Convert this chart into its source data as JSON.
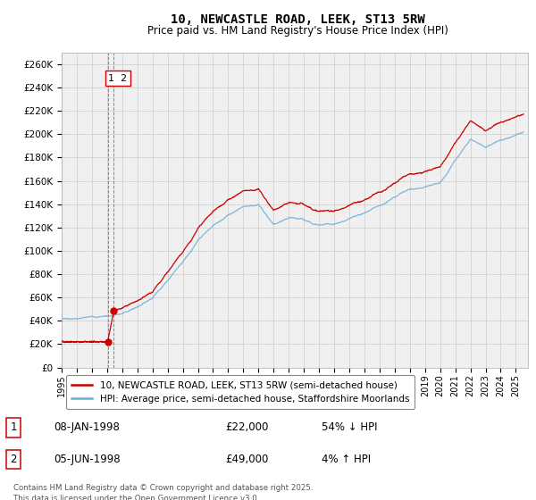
{
  "title": "10, NEWCASTLE ROAD, LEEK, ST13 5RW",
  "subtitle": "Price paid vs. HM Land Registry's House Price Index (HPI)",
  "ylim": [
    0,
    270000
  ],
  "yticks": [
    0,
    20000,
    40000,
    60000,
    80000,
    100000,
    120000,
    140000,
    160000,
    180000,
    200000,
    220000,
    240000,
    260000
  ],
  "xlim_start": 1995.0,
  "xlim_end": 2025.8,
  "hpi_color": "#6baed6",
  "price_color": "#cc0000",
  "grid_color": "#cccccc",
  "bg_color": "#ffffff",
  "plot_bg_color": "#f0f0f0",
  "legend_line1": "10, NEWCASTLE ROAD, LEEK, ST13 5RW (semi-detached house)",
  "legend_line2": "HPI: Average price, semi-detached house, Staffordshire Moorlands",
  "transaction1_date": "08-JAN-1998",
  "transaction1_price": "£22,000",
  "transaction1_hpi": "54% ↓ HPI",
  "transaction1_label": "1",
  "transaction2_date": "05-JUN-1998",
  "transaction2_price": "£49,000",
  "transaction2_hpi": "4% ↑ HPI",
  "transaction2_label": "2",
  "footer": "Contains HM Land Registry data © Crown copyright and database right 2025.\nThis data is licensed under the Open Government Licence v3.0.",
  "sale_date1": 1998.04,
  "sale_date2": 1998.45,
  "sale_price1": 22000,
  "sale_price2": 49000,
  "hpi_knots_x": [
    1995,
    1996,
    1997,
    1998,
    1999,
    2000,
    2001,
    2002,
    2003,
    2004,
    2005,
    2006,
    2007,
    2008,
    2009,
    2010,
    2011,
    2012,
    2013,
    2014,
    2015,
    2016,
    2017,
    2018,
    2019,
    2020,
    2021,
    2022,
    2023,
    2024,
    2025.5
  ],
  "hpi_knots_y": [
    42000,
    42500,
    43500,
    45000,
    47000,
    53000,
    62000,
    78000,
    95000,
    113000,
    125000,
    135000,
    143000,
    145000,
    128000,
    132000,
    130000,
    126000,
    127000,
    131000,
    136000,
    143000,
    150000,
    156000,
    159000,
    162000,
    182000,
    202000,
    196000,
    202000,
    210000
  ],
  "xtick_years": [
    1995,
    1996,
    1997,
    1998,
    1999,
    2000,
    2001,
    2002,
    2003,
    2004,
    2005,
    2006,
    2007,
    2008,
    2009,
    2010,
    2011,
    2012,
    2013,
    2014,
    2015,
    2016,
    2017,
    2018,
    2019,
    2020,
    2021,
    2022,
    2023,
    2024,
    2025
  ]
}
